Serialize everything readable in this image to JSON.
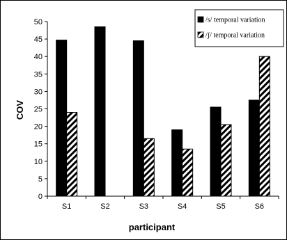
{
  "chart_data": {
    "type": "bar",
    "title": "",
    "xlabel": "participant",
    "ylabel": "COV",
    "categories": [
      "S1",
      "S2",
      "S3",
      "S4",
      "S5",
      "S6"
    ],
    "ylim": [
      0,
      50
    ],
    "yticks": [
      0,
      5,
      10,
      15,
      20,
      25,
      30,
      35,
      40,
      45,
      50
    ],
    "grid": false,
    "legend_position": "top-right",
    "series": [
      {
        "name": "/s/ temporal variation",
        "values": [
          44.7,
          48.5,
          44.5,
          19.0,
          25.5,
          27.5
        ],
        "fill": "solid-black",
        "color": "#000000"
      },
      {
        "name": "/ʃ/ temporal variation",
        "values": [
          24.0,
          null,
          16.5,
          13.5,
          20.5,
          40.0
        ],
        "fill": "diagonal-hatch",
        "color": "#000000"
      }
    ]
  }
}
